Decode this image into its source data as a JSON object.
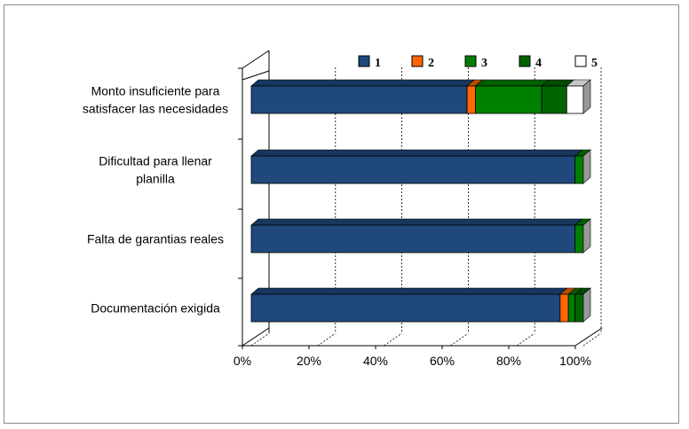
{
  "chart_data": {
    "type": "bar",
    "orientation": "horizontal",
    "stacked": "percent",
    "style": "3d",
    "title": "",
    "xlabel": "",
    "ylabel": "",
    "xlim": [
      0,
      100
    ],
    "x_ticks": [
      "0%",
      "20%",
      "40%",
      "60%",
      "80%",
      "100%"
    ],
    "grid": "vertical dashed",
    "legend_position": "top-right",
    "categories": [
      [
        "Monto insuficiente para",
        "satisfacer las necesidades"
      ],
      [
        "Dificultad para llenar",
        "planilla"
      ],
      [
        "Falta de garantias reales"
      ],
      [
        "Documentación exigida"
      ]
    ],
    "series": [
      {
        "name": "1",
        "color": "#1F497D",
        "values": [
          65,
          97.5,
          97.5,
          93
        ]
      },
      {
        "name": "2",
        "color": "#FF6600",
        "values": [
          2.5,
          0,
          0,
          2.5
        ]
      },
      {
        "name": "3",
        "color": "#008000",
        "values": [
          20,
          2.5,
          2.5,
          2
        ]
      },
      {
        "name": "4",
        "color": "#006400",
        "values": [
          7.5,
          0,
          0,
          2.5
        ]
      },
      {
        "name": "5",
        "color": "#FFFFFF",
        "values": [
          5,
          0,
          0,
          0
        ]
      }
    ]
  }
}
